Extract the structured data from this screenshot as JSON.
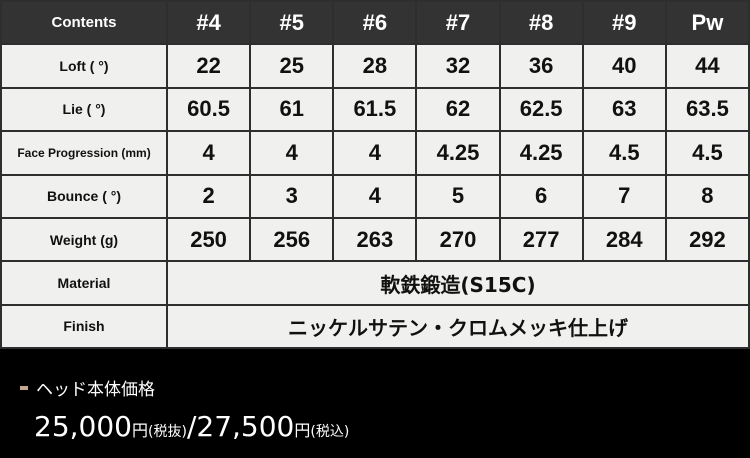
{
  "table": {
    "header": [
      "Contents",
      "#4",
      "#5",
      "#6",
      "#7",
      "#8",
      "#9",
      "Pw"
    ],
    "rows": [
      {
        "label": "Loft ( °)",
        "values": [
          "22",
          "25",
          "28",
          "32",
          "36",
          "40",
          "44"
        ]
      },
      {
        "label": "Lie ( °)",
        "values": [
          "60.5",
          "61",
          "61.5",
          "62",
          "62.5",
          "63",
          "63.5"
        ]
      },
      {
        "label": "Face Progression (mm)",
        "values": [
          "4",
          "4",
          "4",
          "4.25",
          "4.25",
          "4.5",
          "4.5"
        ]
      },
      {
        "label": "Bounce ( °)",
        "values": [
          "2",
          "3",
          "4",
          "5",
          "6",
          "7",
          "8"
        ]
      },
      {
        "label": "Weight (g)",
        "values": [
          "250",
          "256",
          "263",
          "270",
          "277",
          "284",
          "292"
        ]
      }
    ],
    "material": {
      "label": "Material",
      "value": "軟鉄鍛造(S15C)"
    },
    "finish": {
      "label": "Finish",
      "value": "ニッケルサテン・クロムメッキ仕上げ"
    }
  },
  "price": {
    "title": "ヘッド本体価格",
    "price_ex": "25,000",
    "unit": "円",
    "tax_ex": "(税抜)",
    "separator": "/",
    "price_in": "27,500",
    "tax_in": "(税込)",
    "bullet_color": "#c4a68c"
  }
}
